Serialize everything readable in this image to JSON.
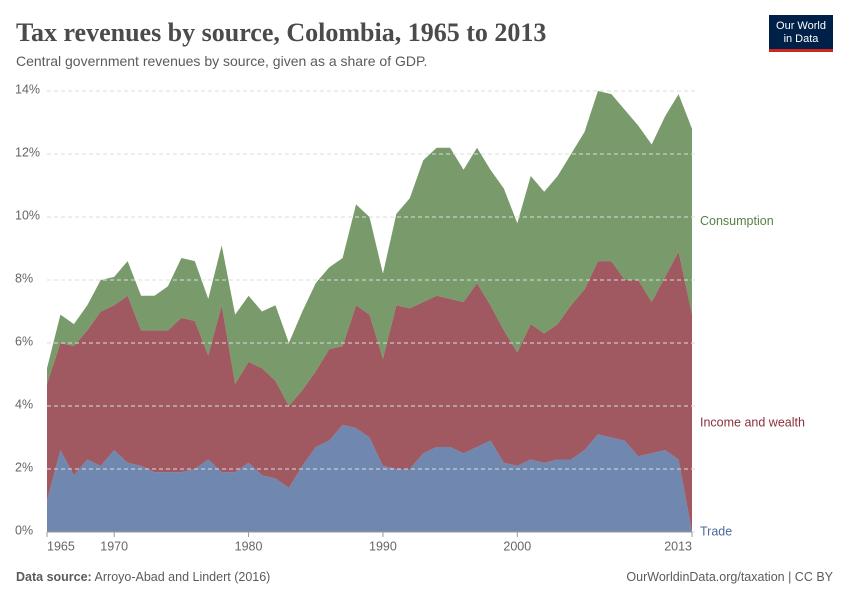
{
  "chart_data": {
    "type": "stacked_area",
    "title": "Tax revenues by source, Colombia, 1965 to 2013",
    "subtitle": "Central government revenues by source, given as a share of GDP.",
    "source_label": "Data source:",
    "source": "Arroyo-Abad and Lindert (2016)",
    "footer_right": "OurWorldinData.org/taxation | CC BY",
    "logo": [
      "Our World",
      "in Data"
    ],
    "x": [
      1965,
      1966,
      1967,
      1968,
      1969,
      1970,
      1971,
      1972,
      1973,
      1974,
      1975,
      1976,
      1977,
      1978,
      1979,
      1980,
      1981,
      1982,
      1983,
      1984,
      1985,
      1986,
      1987,
      1988,
      1989,
      1990,
      1991,
      1992,
      1993,
      1994,
      1995,
      1996,
      1997,
      1998,
      1999,
      2000,
      2001,
      2002,
      2003,
      2004,
      2005,
      2006,
      2007,
      2008,
      2009,
      2010,
      2011,
      2012,
      2013
    ],
    "series": [
      {
        "name": "Trade",
        "color": "#4c6a9c",
        "values": [
          1.0,
          2.6,
          1.8,
          2.3,
          2.1,
          2.6,
          2.2,
          2.1,
          1.9,
          1.9,
          1.9,
          2.0,
          2.3,
          1.9,
          1.9,
          2.2,
          1.8,
          1.7,
          1.4,
          2.1,
          2.7,
          2.9,
          3.4,
          3.3,
          3.0,
          2.1,
          2.0,
          2.0,
          2.5,
          2.7,
          2.7,
          2.5,
          2.7,
          2.9,
          2.2,
          2.1,
          2.3,
          2.2,
          2.3,
          2.3,
          2.6,
          3.1,
          3.0,
          2.9,
          2.4,
          2.5,
          2.6,
          2.3,
          0.0
        ]
      },
      {
        "name": "Income and wealth",
        "color": "#883039",
        "values": [
          3.7,
          3.4,
          4.1,
          4.1,
          4.9,
          4.6,
          5.3,
          4.3,
          4.5,
          4.5,
          4.9,
          4.7,
          3.3,
          5.3,
          2.8,
          3.2,
          3.4,
          3.1,
          2.6,
          2.4,
          2.4,
          2.9,
          2.5,
          3.9,
          3.9,
          3.4,
          5.2,
          5.1,
          4.8,
          4.8,
          4.7,
          4.8,
          5.2,
          4.3,
          4.2,
          3.6,
          4.3,
          4.1,
          4.3,
          4.9,
          5.1,
          5.5,
          5.6,
          5.1,
          5.6,
          4.8,
          5.5,
          6.6,
          6.9
        ]
      },
      {
        "name": "Consumption",
        "color": "#578145",
        "values": [
          0.5,
          0.9,
          0.7,
          0.8,
          1.0,
          0.9,
          1.1,
          1.1,
          1.1,
          1.4,
          1.9,
          1.9,
          1.8,
          1.9,
          2.2,
          2.1,
          1.8,
          2.4,
          2.0,
          2.5,
          2.8,
          2.6,
          2.8,
          3.2,
          3.1,
          2.7,
          2.9,
          3.5,
          4.5,
          4.7,
          4.8,
          4.2,
          4.3,
          4.3,
          4.5,
          4.1,
          4.7,
          4.5,
          4.7,
          4.8,
          5.0,
          5.4,
          5.3,
          5.4,
          4.9,
          5.0,
          5.1,
          5.0,
          5.9
        ]
      }
    ],
    "xlim": [
      1965,
      2013
    ],
    "xticks": [
      1965,
      1970,
      1980,
      1990,
      2000,
      2013
    ],
    "ylim": [
      0,
      14
    ],
    "yticks": [
      {
        "value": 0,
        "label": "0%"
      },
      {
        "value": 2,
        "label": "2%"
      },
      {
        "value": 4,
        "label": "4%"
      },
      {
        "value": 6,
        "label": "6%"
      },
      {
        "value": 8,
        "label": "8%"
      },
      {
        "value": 10,
        "label": "10%"
      },
      {
        "value": 12,
        "label": "12%"
      },
      {
        "value": 14,
        "label": "14%"
      }
    ],
    "grid": true
  }
}
